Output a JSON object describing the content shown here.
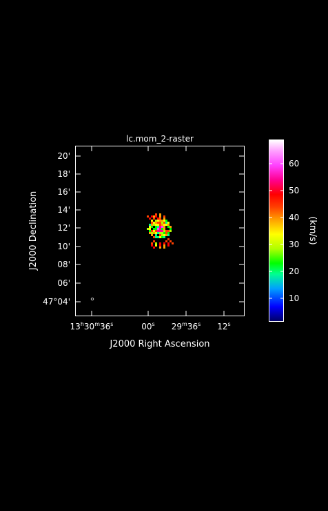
{
  "plot": {
    "title": "lc.mom_2-raster",
    "xlabel": "J2000 Right Ascension",
    "ylabel": "J2000 Declination",
    "y_ticks": [
      "20'",
      "18'",
      "16'",
      "14'",
      "12'",
      "10'",
      "08'",
      "06'"
    ],
    "y_tick_first": "47°04'",
    "x_ticks": [
      {
        "hms": "13h30m36s",
        "parts": [
          "13",
          "h",
          "30",
          "m",
          "36",
          "s"
        ]
      },
      {
        "hms": "00s",
        "parts": [
          "00",
          "s"
        ]
      },
      {
        "hms": "29m36s",
        "parts": [
          "29",
          "m",
          "36",
          "s"
        ]
      },
      {
        "hms": "12s",
        "parts": [
          "12",
          "s"
        ]
      }
    ],
    "beam_marker": "o"
  },
  "colorbar": {
    "label": "(km/s)",
    "ticks": [
      "60",
      "50",
      "40",
      "30",
      "20",
      "10"
    ],
    "range": [
      1,
      68
    ],
    "colors": [
      "#000066",
      "#0000ff",
      "#00a0ff",
      "#00ff90",
      "#00ff00",
      "#b0ff00",
      "#ffff00",
      "#ffa000",
      "#ff4000",
      "#ff0000",
      "#ff0090",
      "#ff40ff",
      "#ffa0ff",
      "#ffffff"
    ]
  }
}
